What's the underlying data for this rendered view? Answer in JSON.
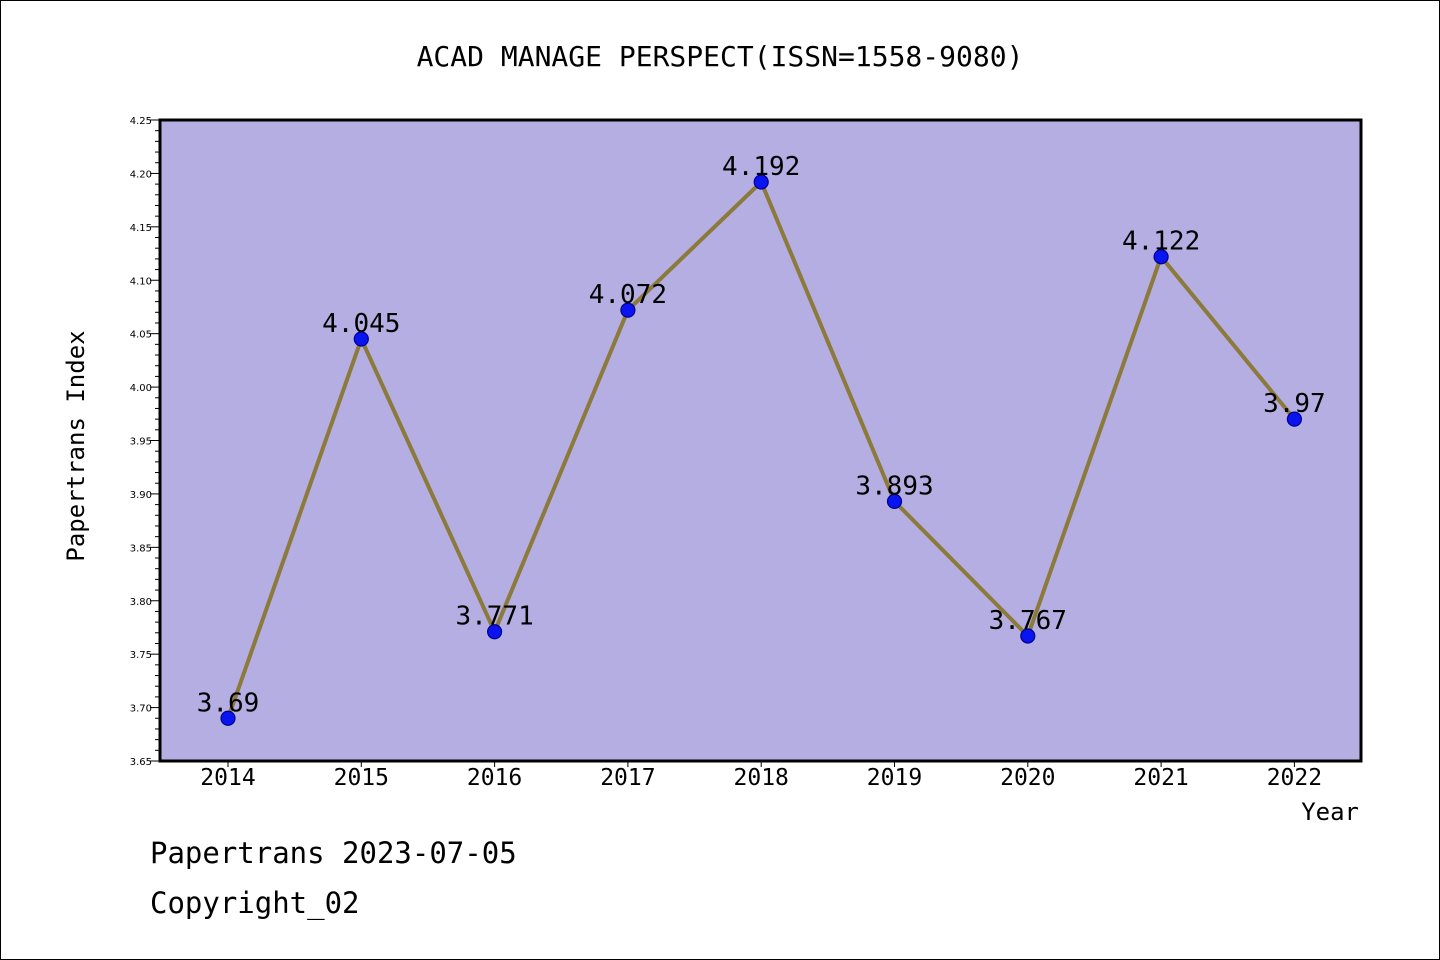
{
  "chart_data": {
    "type": "line",
    "title": "ACAD MANAGE PERSPECT(ISSN=1558-9080)",
    "xlabel": "Year",
    "ylabel": "Papertrans Index",
    "categories": [
      "2014",
      "2015",
      "2016",
      "2017",
      "2018",
      "2019",
      "2020",
      "2021",
      "2022"
    ],
    "series": [
      {
        "values": [
          3.69,
          4.045,
          3.771,
          4.072,
          4.192,
          3.893,
          3.767,
          4.122,
          3.97
        ]
      }
    ],
    "data_labels": [
      "3.69",
      "4.045",
      "3.771",
      "4.072",
      "4.192",
      "3.893",
      "3.767",
      "4.122",
      "3.97"
    ],
    "ylim": [
      3.65,
      4.25
    ],
    "yticks": [
      "3.65",
      "3.70",
      "3.75",
      "3.80",
      "3.85",
      "3.90",
      "3.95",
      "4.00",
      "4.05",
      "4.10",
      "4.15",
      "4.20",
      "4.25"
    ],
    "grid": false,
    "colors": {
      "plot_background": "#b4aee2",
      "line": "#8b7a3a",
      "marker": "#0a14f0",
      "marker_edge": "#00008b"
    }
  },
  "footer": {
    "date_line": "Papertrans 2023-07-05",
    "copyright_line": "Copyright_02"
  }
}
